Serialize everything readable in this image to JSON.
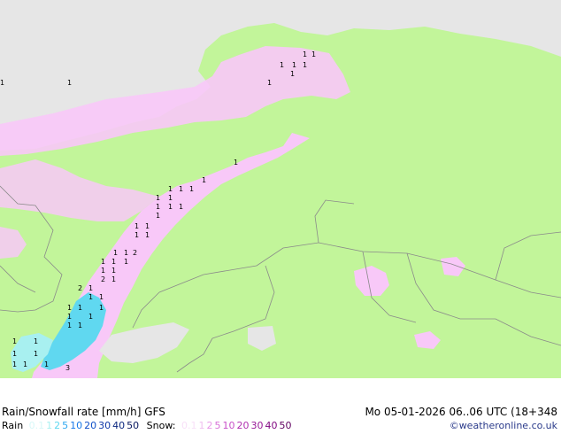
{
  "title": "Rain/Snowfall rate [mm/h] GFS",
  "valid_time": "Mo 05-01-2026 06..06 UTC (18+348",
  "rain_legend": {
    "label": "Rain",
    "values": [
      "0.1",
      "1",
      "2",
      "5",
      "10",
      "20",
      "30",
      "40",
      "50"
    ],
    "colors": [
      "#d8f8f8",
      "#a8f0f0",
      "#60d8f0",
      "#30a8f0",
      "#1878e8",
      "#1050c8",
      "#1038a8",
      "#0c2880",
      "#081860"
    ]
  },
  "snow_legend": {
    "label": "Snow:",
    "values": [
      "0.1",
      "1",
      "2",
      "5",
      "10",
      "20",
      "30",
      "40",
      "50"
    ],
    "colors": [
      "#f8e0f8",
      "#f0c0f0",
      "#e898e8",
      "#d870d8",
      "#c850c8",
      "#b030b0",
      "#981898",
      "#800880",
      "#600060"
    ]
  },
  "credit": "©weatheronline.co.uk",
  "colors": {
    "land": "#c2f59a",
    "no_data": "#e6e6e6",
    "snow_light": "#f8c8f8",
    "rain_light": "#a8f0f0",
    "rain_mid": "#60d8f0",
    "borders": "#8a8a8a"
  },
  "map_labels": {
    "snow_markers": [
      "1",
      "1",
      "1",
      "1",
      "1",
      "1",
      "1",
      "1",
      "1",
      "1",
      "1",
      "1",
      "1",
      "1",
      "1",
      "1",
      "1",
      "1",
      "1",
      "1",
      "1",
      "1",
      "1",
      "1",
      "2",
      "1",
      "1",
      "1",
      "1",
      "1",
      "1",
      "1",
      "2",
      "1",
      "1",
      "2",
      "1",
      "1",
      "1",
      "1",
      "1",
      "1",
      "1",
      "1",
      "1",
      "1",
      "1",
      "1",
      "1",
      "3",
      "1",
      "1",
      "1"
    ]
  }
}
